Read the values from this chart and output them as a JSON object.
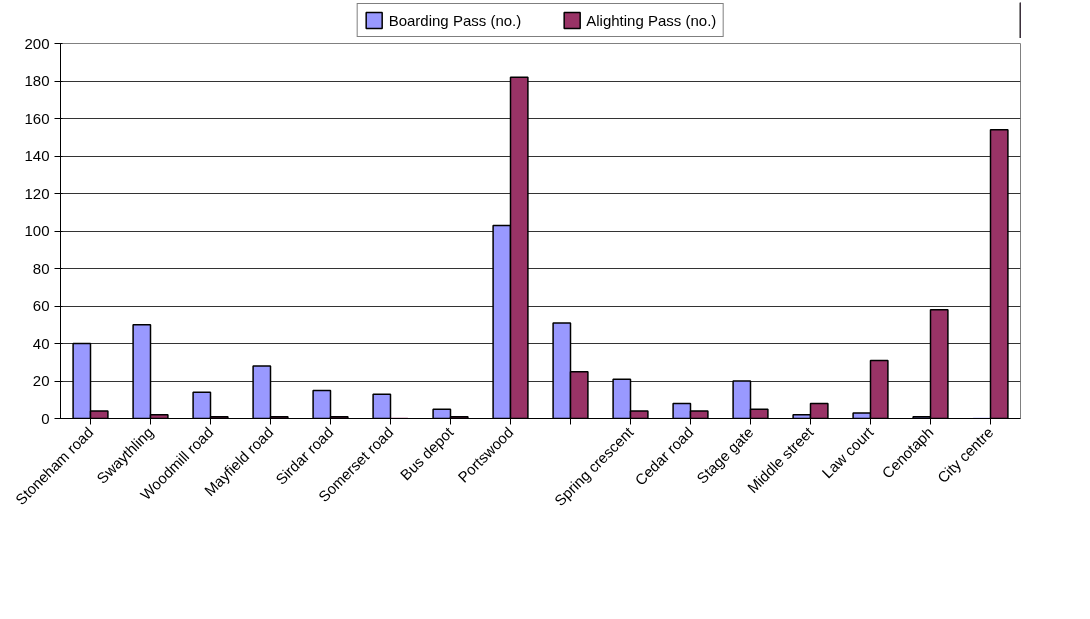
{
  "chart_data": {
    "type": "bar",
    "categories": [
      "Stoneham road",
      "Swaythling",
      "Woodmill road",
      "Mayfield road",
      "Sirdar road",
      "Somerset road",
      "Bus depot",
      "Portswood",
      null,
      "Spring crescent",
      "Cedar road",
      "Stage gate",
      "Middle street",
      "Law court",
      "Cenotaph",
      "City centre"
    ],
    "series": [
      {
        "name": "Boarding Pass (no.)",
        "color": "#9999ff",
        "values": [
          40,
          50,
          14,
          28,
          15,
          13,
          5,
          103,
          51,
          21,
          8,
          20,
          2,
          3,
          1,
          0
        ]
      },
      {
        "name": "Alighting Pass (no.)",
        "color": "#993366",
        "values": [
          4,
          2,
          1,
          1,
          1,
          0,
          1,
          182,
          25,
          4,
          4,
          5,
          8,
          31,
          58,
          154
        ]
      }
    ],
    "ylim": [
      0,
      200
    ],
    "yticks": [
      0,
      20,
      40,
      60,
      80,
      100,
      120,
      140,
      160,
      180,
      200
    ],
    "grid": "y",
    "legend": "top"
  }
}
